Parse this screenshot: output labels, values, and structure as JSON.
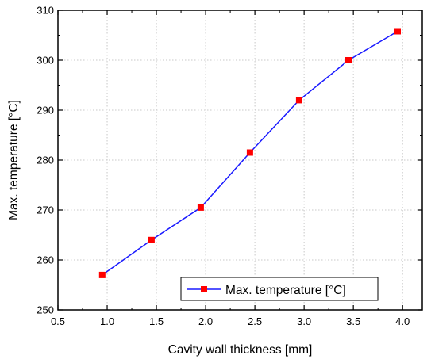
{
  "chart_data": {
    "type": "line",
    "title": "",
    "xlabel": "Cavity wall thickness [mm]",
    "ylabel": "Max. temperature [°C]",
    "xlim": [
      0.5,
      4.2
    ],
    "ylim": [
      250,
      310
    ],
    "x_ticks": [
      "0.5",
      "1.0",
      "1.5",
      "2.0",
      "2.5",
      "3.0",
      "3.5",
      "4.0"
    ],
    "y_ticks": [
      "250",
      "260",
      "270",
      "280",
      "290",
      "300",
      "310"
    ],
    "grid": true,
    "legend_position": "bottom-right",
    "series": [
      {
        "name": "Max. temperature [°C]",
        "line_color": "#1a1aff",
        "marker_color": "#ff0000",
        "marker": "square",
        "x": [
          0.95,
          1.45,
          1.95,
          2.45,
          2.95,
          3.45,
          3.95
        ],
        "y": [
          257.0,
          264.0,
          270.5,
          281.5,
          292.0,
          300.0,
          305.8
        ]
      }
    ]
  }
}
